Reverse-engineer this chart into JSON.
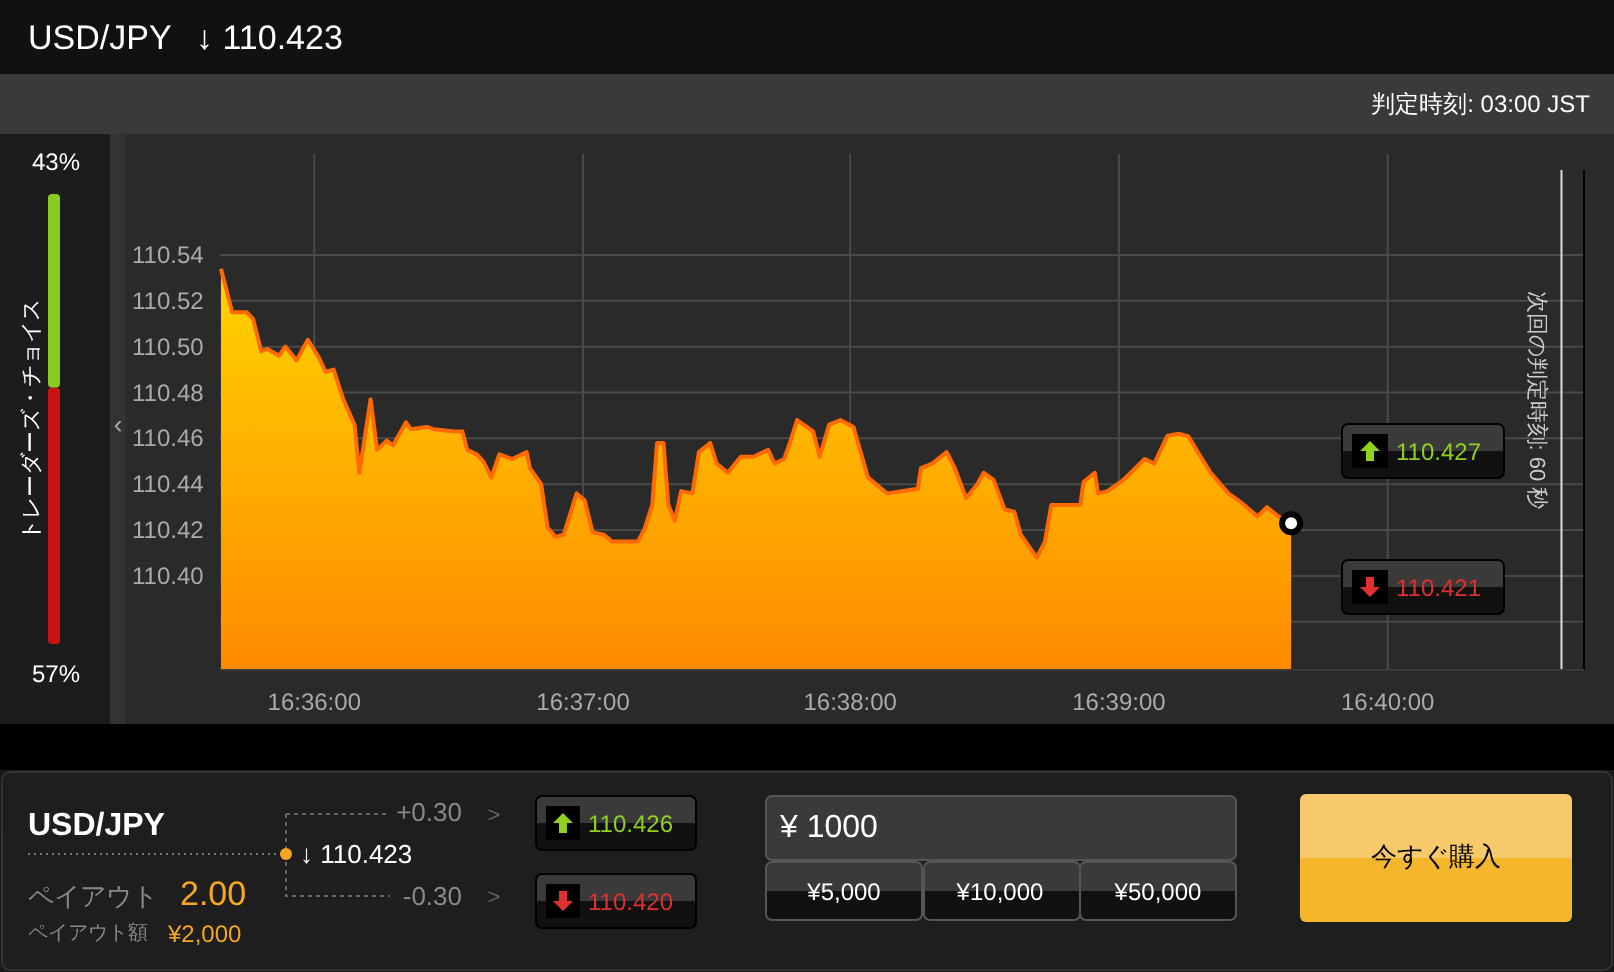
{
  "chart_data": [
    {
      "type": "area",
      "title": "USD/JPY",
      "subtitle": "↓ 110.423",
      "annotations": [
        "判定時刻: 03:00 JST",
        "110.427",
        "110.421",
        "次回の判定時刻: 60 秒",
        "‹"
      ],
      "x": [
        16.5942,
        16.5949,
        16.5958,
        16.5962,
        16.5967,
        16.5971,
        16.5978,
        16.5982,
        16.5989,
        16.5996,
        16.6003,
        16.6007,
        16.6012,
        16.6018,
        16.6025,
        16.6028,
        16.6035,
        16.6039,
        16.6045,
        16.6049,
        16.6057,
        16.606,
        16.607,
        16.6074,
        16.6087,
        16.6092,
        16.6095,
        16.6101,
        16.6105,
        16.611,
        16.6115,
        16.6123,
        16.6132,
        16.6134,
        16.6141,
        16.6145,
        16.615,
        16.6155,
        16.6163,
        16.6168,
        16.6173,
        16.618,
        16.6185,
        16.6201,
        16.6205,
        16.621,
        16.6213,
        16.6217,
        16.622,
        16.6224,
        16.6228,
        16.6235,
        16.6239,
        16.6246,
        16.625,
        16.6257,
        16.6265,
        16.6273,
        16.6282,
        16.6286,
        16.6292,
        16.6296,
        16.63,
        16.631,
        16.6314,
        16.632,
        16.6327,
        16.6335,
        16.6344,
        16.6356,
        16.6375,
        16.6377,
        16.6384,
        16.6393,
        16.6398,
        16.6405,
        16.6412,
        16.6416,
        16.6422,
        16.6429,
        16.6435,
        16.6439,
        16.6449,
        16.6454,
        16.6458,
        16.647,
        16.6476,
        16.6478,
        16.6485,
        16.6487,
        16.6493,
        16.6503,
        16.6516,
        16.6522,
        16.653,
        16.6537,
        16.6543,
        16.6549,
        16.6557,
        16.6568,
        16.6576,
        16.6586,
        16.6592,
        16.6599,
        16.6607
      ],
      "series": [
        {
          "color": "#ff6a00",
          "values": [
            110.534,
            110.515,
            110.515,
            110.512,
            110.498,
            110.499,
            110.496,
            110.5,
            110.494,
            110.503,
            110.495,
            110.489,
            110.49,
            110.477,
            110.466,
            110.445,
            110.477,
            110.455,
            110.459,
            110.457,
            110.467,
            110.464,
            110.465,
            110.464,
            110.463,
            110.463,
            110.455,
            110.453,
            110.45,
            110.443,
            110.453,
            110.451,
            110.454,
            110.447,
            110.44,
            110.421,
            110.417,
            110.418,
            110.436,
            110.433,
            110.419,
            110.418,
            110.415,
            110.415,
            110.42,
            110.431,
            110.458,
            110.458,
            110.431,
            110.424,
            110.437,
            110.436,
            110.454,
            110.458,
            110.449,
            110.445,
            110.452,
            110.452,
            110.455,
            110.449,
            110.451,
            110.459,
            110.468,
            110.463,
            110.452,
            110.466,
            110.468,
            110.465,
            110.443,
            110.436,
            110.438,
            110.447,
            110.449,
            110.454,
            110.447,
            110.434,
            110.44,
            110.445,
            110.442,
            110.429,
            110.428,
            110.418,
            110.408,
            110.415,
            110.431,
            110.431,
            110.431,
            110.441,
            110.445,
            110.436,
            110.437,
            110.442,
            110.451,
            110.449,
            110.461,
            110.462,
            110.461,
            110.454,
            110.445,
            110.436,
            110.432,
            110.426,
            110.43,
            110.426,
            110.423
          ]
        }
      ],
      "xlim": [
        16.5883,
        16.6789
      ],
      "xticks": [
        {
          "value": 16.6,
          "label": "16:36:00"
        },
        {
          "value": 16.6167,
          "label": "16:37:00"
        },
        {
          "value": 16.6333,
          "label": "16:38:00"
        },
        {
          "value": 16.65,
          "label": "16:39:00"
        },
        {
          "value": 16.6667,
          "label": "16:40:00"
        }
      ],
      "ylim": [
        110.359,
        110.584
      ],
      "yticks": [
        {
          "value": 110.38,
          "label": null
        },
        {
          "value": 110.4,
          "label": "110.40"
        },
        {
          "value": 110.42,
          "label": "110.42"
        },
        {
          "value": 110.44,
          "label": "110.44"
        },
        {
          "value": 110.46,
          "label": "110.46"
        },
        {
          "value": 110.48,
          "label": "110.48"
        },
        {
          "value": 110.5,
          "label": "110.50"
        },
        {
          "value": 110.52,
          "label": "110.52"
        },
        {
          "value": 110.54,
          "label": "110.54"
        }
      ],
      "grid": true,
      "ref_lines": [
        {
          "axis": "x",
          "value": 16.6775,
          "color": "#dddddd"
        }
      ]
    },
    {
      "type": "bar",
      "stacked": true,
      "title": "トレーダーズ・チョイス",
      "categories": [
        null
      ],
      "series": [
        {
          "color": "#cc1111",
          "values": [
            57
          ],
          "value_labels": [
            "57%"
          ]
        },
        {
          "color": "#88cc22",
          "values": [
            43
          ],
          "value_labels": [
            "43%"
          ]
        }
      ]
    },
    {
      "type": "other",
      "title": "USD/JPY",
      "annotations": [
        "ペイアウト",
        "2.00",
        "ペイアウト額",
        "¥2,000",
        "+0.30",
        "-0.30",
        "↓ 110.423",
        "110.426",
        "110.420",
        "¥ 1000",
        "¥5,000",
        "¥10,000",
        "¥50,000",
        "今すぐ購入",
        ">",
        ">"
      ]
    }
  ]
}
